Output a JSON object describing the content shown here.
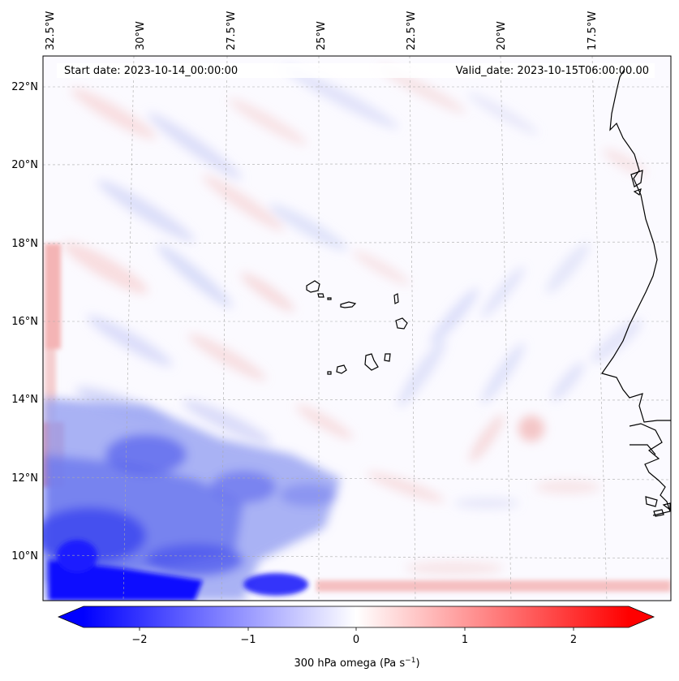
{
  "map": {
    "start_date_label": "Start date: 2023-10-14_00:00:00",
    "valid_date_label": "Valid_date: 2023-10-15T06:00:00.00",
    "lon_ticks": [
      "32.5°W",
      "30°W",
      "27.5°W",
      "25°W",
      "22.5°W",
      "20°W",
      "17.5°W"
    ],
    "lat_ticks": [
      "22°N",
      "20°N",
      "18°N",
      "16°N",
      "14°N",
      "12°N",
      "10°N"
    ],
    "lon_range_deg": [
      -32.7,
      -15.5
    ],
    "lat_range_deg": [
      8.9,
      22.8
    ],
    "colormap": "bwr",
    "min_color": "#0000ff",
    "mid_color": "#ffffff",
    "max_color": "#ff0000"
  },
  "colorbar": {
    "ticks": [
      "−2",
      "−1",
      "0",
      "1",
      "2"
    ],
    "range": [
      -2.6,
      2.6
    ],
    "extend": "both",
    "label": "300 hPa omega (Pa s",
    "label_exp": "−1",
    "label_close": ")"
  }
}
